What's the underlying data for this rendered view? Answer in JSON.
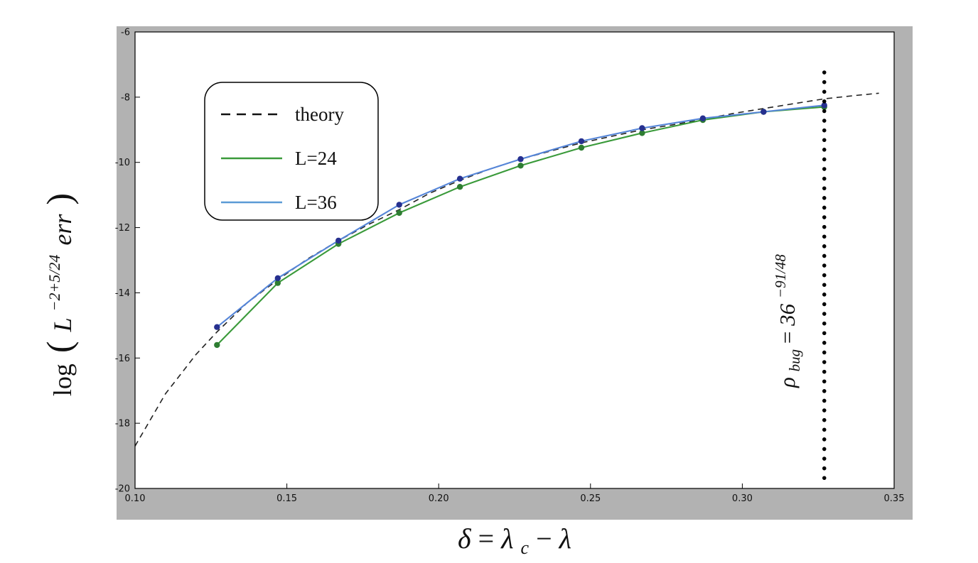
{
  "figure": {
    "background": "#ffffff",
    "frame_color": "#b2b2b2",
    "plot_background": "#ffffff",
    "axis_color": "#000000"
  },
  "labels": {
    "ylabel": {
      "log": "log",
      "open": "(",
      "base": "L",
      "exp": "−2+5/24",
      "err": "err",
      "close": ")"
    },
    "xlabel": {
      "delta": "δ",
      "eq": " = ",
      "lam": "λ",
      "sub": "c",
      "minus": " − ",
      "lam2": "λ"
    },
    "annotation": {
      "rho": "ρ",
      "sub": "bug",
      "eq": " = ",
      "base": "36",
      "exp": "−91/48"
    }
  },
  "chart_data": {
    "type": "line",
    "title": "",
    "xlabel": "δ = λc − λ",
    "ylabel": "log ( L^(−2+5/24) err )",
    "xlim": [
      0.1,
      0.35
    ],
    "ylim": [
      -20,
      -6
    ],
    "grid": false,
    "legend_position": "upper-left",
    "xticks": [
      0.1,
      0.15,
      0.2,
      0.25,
      0.3,
      0.35
    ],
    "xtick_labels": [
      "0.10",
      "0.15",
      "0.20",
      "0.25",
      "0.30",
      "0.35"
    ],
    "yticks": [
      -6,
      -8,
      -10,
      -12,
      -14,
      -16,
      -18,
      -20
    ],
    "ytick_labels": [
      "-6",
      "-8",
      "-10",
      "-12",
      "-14",
      "-16",
      "-18",
      "-20"
    ],
    "x": [
      0.127,
      0.147,
      0.167,
      0.187,
      0.207,
      0.227,
      0.247,
      0.267,
      0.287,
      0.307,
      0.327
    ],
    "series": [
      {
        "name": "theory",
        "style": "dashed",
        "color": "#222222",
        "x": [
          0.1,
          0.105,
          0.11,
          0.115,
          0.12,
          0.127,
          0.137,
          0.147,
          0.157,
          0.167,
          0.177,
          0.187,
          0.197,
          0.207,
          0.217,
          0.227,
          0.237,
          0.247,
          0.257,
          0.267,
          0.277,
          0.287,
          0.297,
          0.307,
          0.317,
          0.327,
          0.337,
          0.345
        ],
        "y": [
          -18.7,
          -17.9,
          -17.1,
          -16.5,
          -15.9,
          -15.2,
          -14.3,
          -13.6,
          -12.95,
          -12.4,
          -11.9,
          -11.45,
          -10.95,
          -10.55,
          -10.2,
          -9.9,
          -9.65,
          -9.4,
          -9.2,
          -9.0,
          -8.85,
          -8.68,
          -8.5,
          -8.35,
          -8.2,
          -8.05,
          -7.95,
          -7.88
        ]
      },
      {
        "name": "L=24",
        "style": "solid",
        "color": "#3a9a3a",
        "marker_color": "#2e7d32",
        "y": [
          -15.6,
          -13.7,
          -12.5,
          -11.55,
          -10.75,
          -10.1,
          -9.55,
          -9.1,
          -8.7,
          -8.45,
          -8.3
        ]
      },
      {
        "name": "L=36",
        "style": "solid",
        "color": "#5585d8",
        "marker_color": "#26308f",
        "y": [
          -15.05,
          -13.55,
          -12.4,
          -11.3,
          -10.5,
          -9.9,
          -9.35,
          -8.95,
          -8.65,
          -8.45,
          -8.25
        ]
      }
    ],
    "vline": {
      "x": 0.327,
      "style": "dotted",
      "color": "#000000",
      "label": "ρbug = 36^(−91/48)"
    }
  }
}
